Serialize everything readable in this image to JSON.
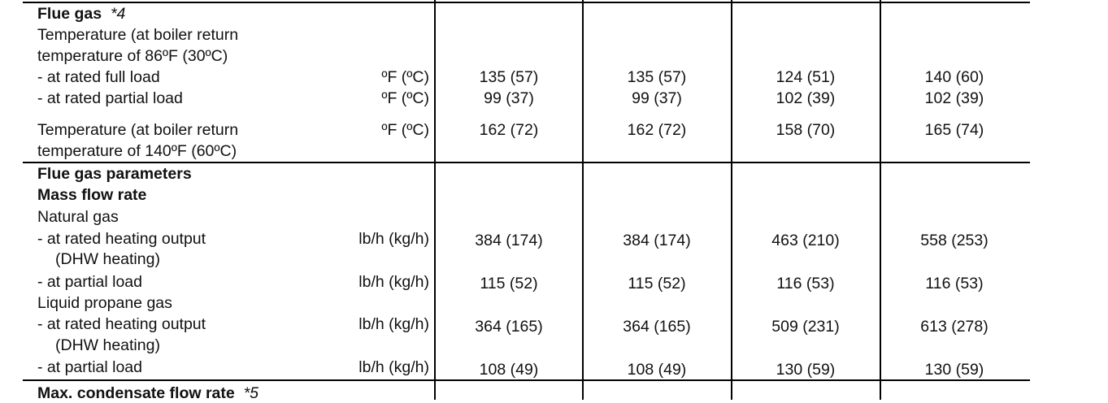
{
  "sections": {
    "flue_gas": {
      "title": "Flue gas",
      "note": "*4"
    },
    "temp_86": {
      "line1": "Temperature (at boiler return",
      "line2": "temperature of 86ºF (30ºC)"
    },
    "full_load": {
      "label": "-  at rated full load",
      "unit": "ºF (ºC)",
      "values": [
        "135 (57)",
        "135 (57)",
        "124 (51)",
        "140 (60)"
      ]
    },
    "partial_load": {
      "label": "-  at rated partial load",
      "unit": "ºF (ºC)",
      "values": [
        "99 (37)",
        "99 (37)",
        "102 (39)",
        "102 (39)"
      ]
    },
    "temp_140": {
      "line1": "Temperature (at boiler return",
      "line2": "temperature of 140ºF (60ºC)",
      "unit": "ºF (ºC)",
      "values": [
        "162 (72)",
        "162 (72)",
        "158 (70)",
        "165 (74)"
      ]
    },
    "flue_params": {
      "title": "Flue gas parameters",
      "subtitle": "Mass flow rate"
    },
    "natural_gas": {
      "title": "Natural gas",
      "rated": {
        "line1": "- at rated heating output",
        "line2": "(DHW heating)",
        "unit": "lb/h (kg/h)",
        "values": [
          "384 (174)",
          "384 (174)",
          "463 (210)",
          "558 (253)"
        ]
      },
      "partial": {
        "label": "- at partial load",
        "unit": "lb/h (kg/h)",
        "values": [
          "115 (52)",
          "115 (52)",
          "116 (53)",
          "116 (53)"
        ]
      }
    },
    "lp_gas": {
      "title": "Liquid propane gas",
      "rated": {
        "line1": "- at rated heating output",
        "line2": "(DHW heating)",
        "unit": "lb/h (kg/h)",
        "values": [
          "364 (165)",
          "364 (165)",
          "509 (231)",
          "613 (278)"
        ]
      },
      "partial": {
        "label": "- at partial load",
        "unit": "lb/h (kg/h)",
        "values": [
          "108 (49)",
          "108 (49)",
          "130 (59)",
          "130 (59)"
        ]
      }
    },
    "condensate": {
      "title": "Max. condensate flow rate",
      "note": "*5"
    }
  }
}
